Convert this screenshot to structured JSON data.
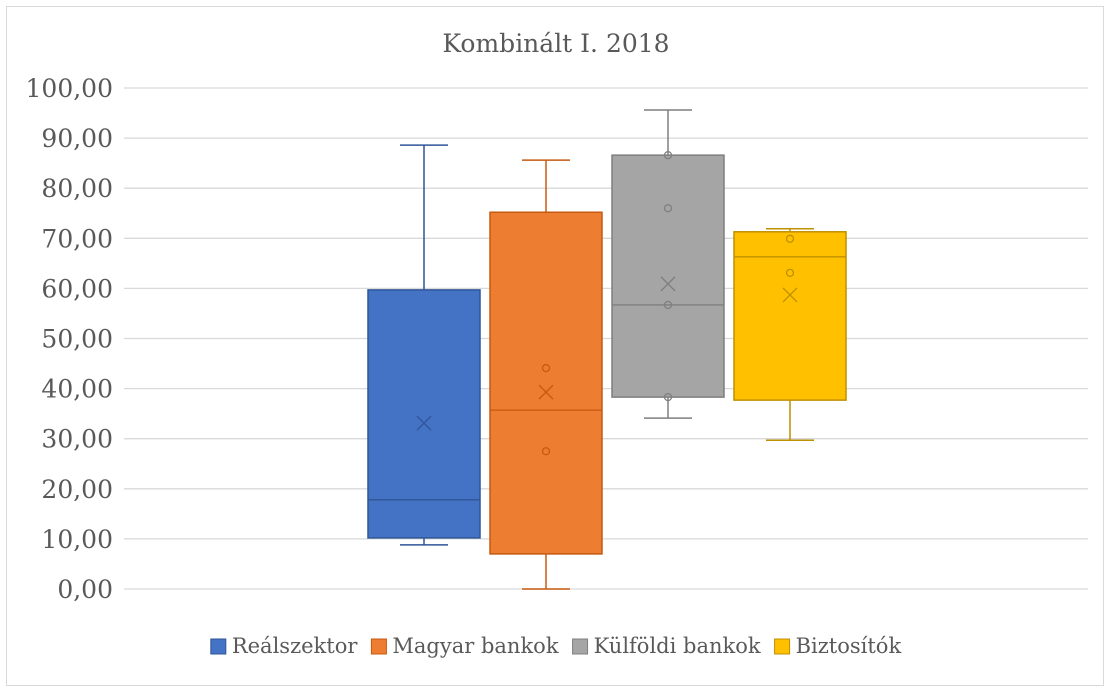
{
  "chart_data": {
    "type": "boxplot",
    "title": "Kombinált I. 2018",
    "xlabel": "",
    "ylabel": "",
    "ylim": [
      0,
      100
    ],
    "ytick_step": 10,
    "yticks": [
      "0,00",
      "10,00",
      "20,00",
      "30,00",
      "40,00",
      "50,00",
      "60,00",
      "70,00",
      "80,00",
      "90,00",
      "100,00"
    ],
    "grid": true,
    "legend_position": "bottom",
    "series": [
      {
        "name": "Reálszektor",
        "color": "#4472C4",
        "edge": "#2F5597",
        "min": 8.8,
        "q1": 10.2,
        "median": 17.8,
        "q3": 59.7,
        "max": 88.6,
        "mean": 33.1,
        "points": []
      },
      {
        "name": "Magyar bankok",
        "color": "#ED7D31",
        "edge": "#C55A11",
        "min": 0.0,
        "q1": 7.0,
        "median": 35.7,
        "q3": 75.2,
        "max": 85.6,
        "mean": 39.3,
        "points": [
          44.1,
          27.5
        ]
      },
      {
        "name": "Külföldi bankok",
        "color": "#A5A5A5",
        "edge": "#7F7F7F",
        "min": 34.1,
        "q1": 38.3,
        "median": 56.7,
        "q3": 86.6,
        "max": 95.6,
        "mean": 60.9,
        "points": [
          86.6,
          76.0,
          56.7,
          38.3
        ]
      },
      {
        "name": "Biztosítók",
        "color": "#FFC000",
        "edge": "#BF9000",
        "min": 29.7,
        "q1": 37.7,
        "median": 66.3,
        "q3": 71.3,
        "max": 71.9,
        "mean": 58.7,
        "points": [
          69.9,
          63.1
        ]
      }
    ]
  }
}
